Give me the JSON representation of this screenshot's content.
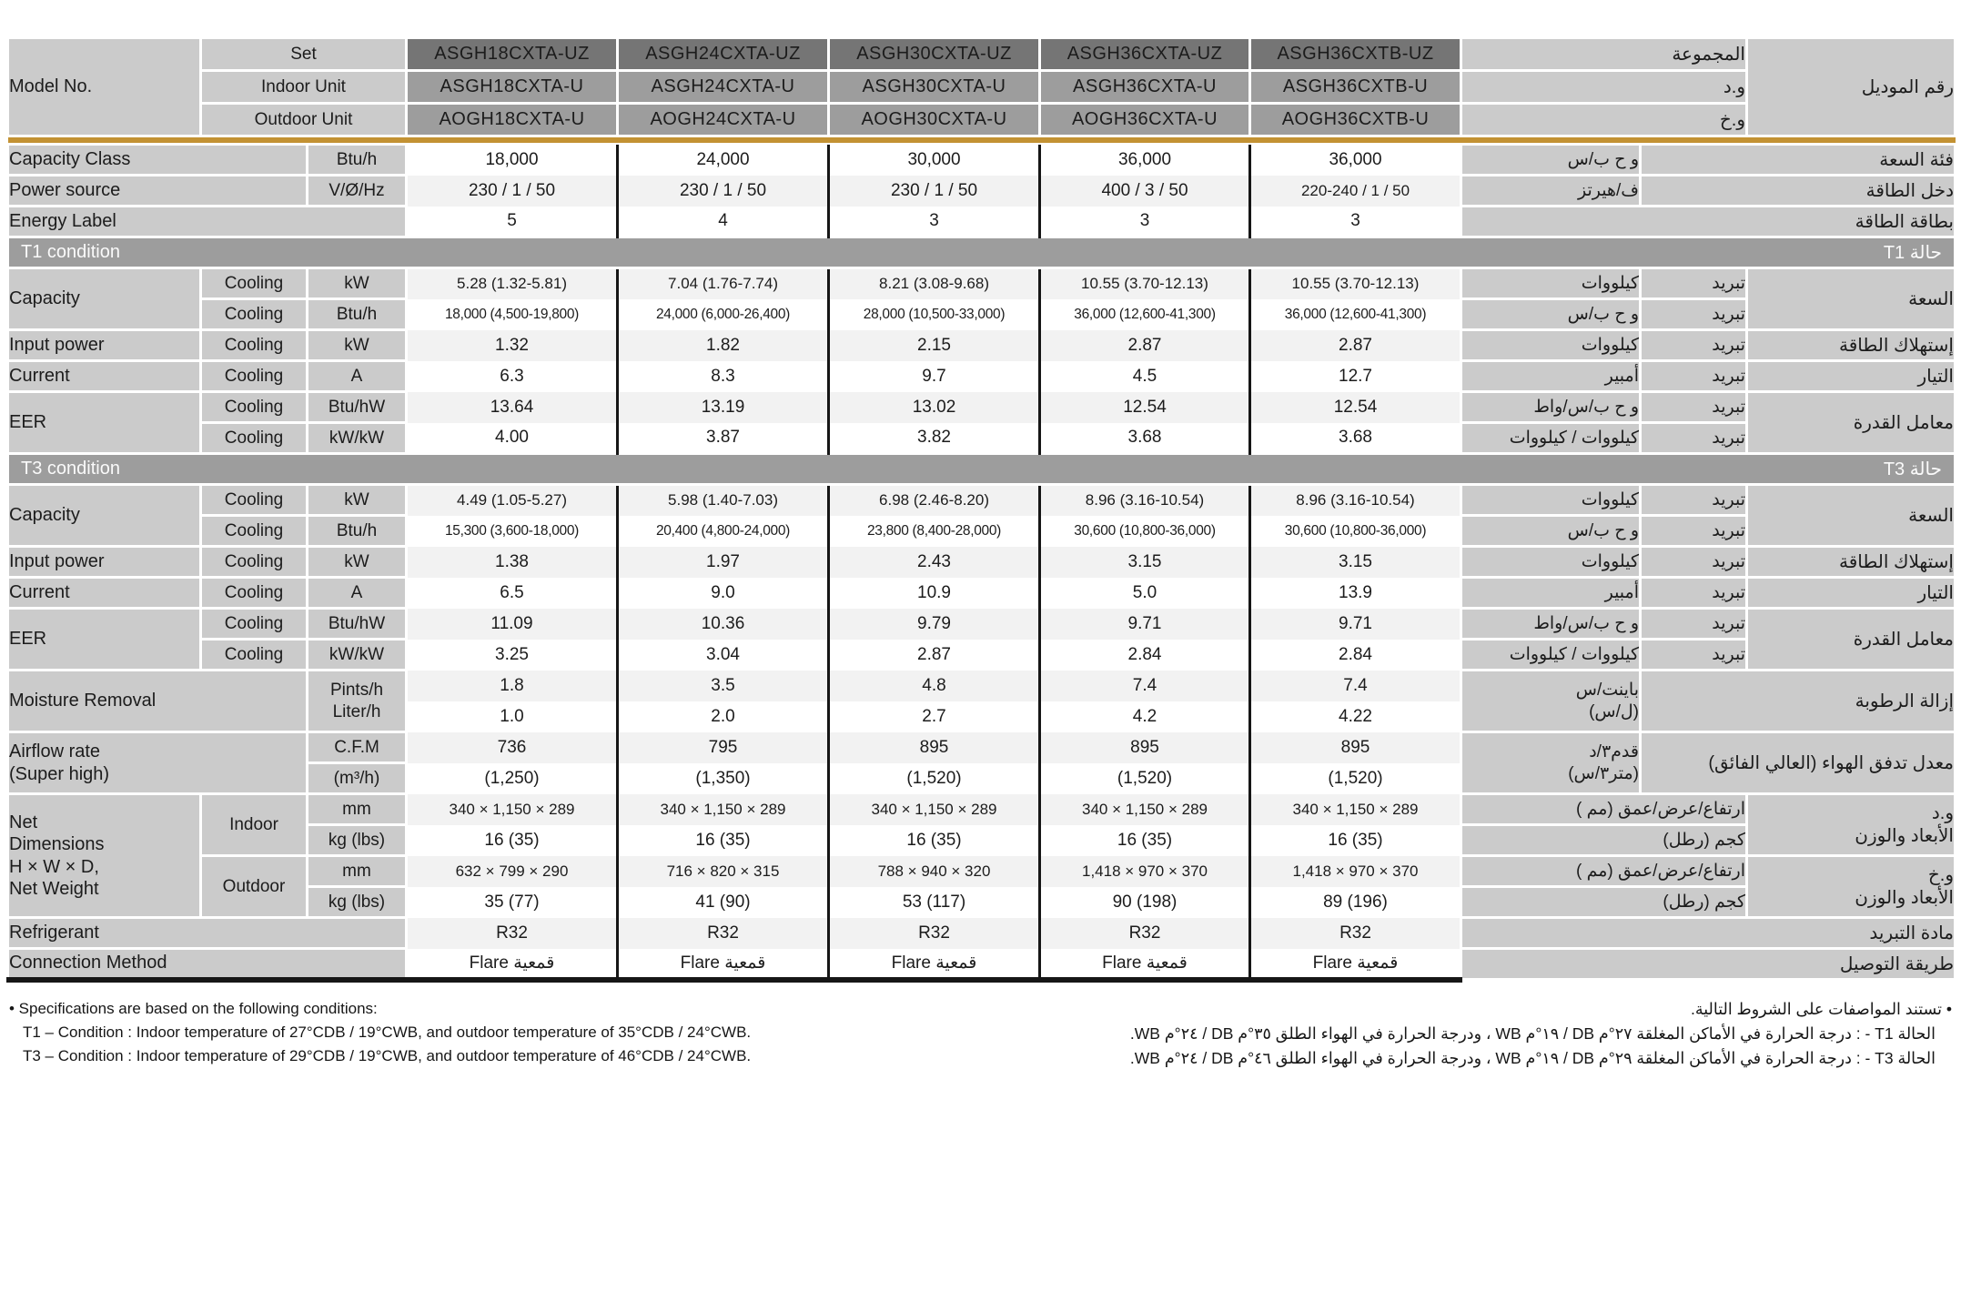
{
  "colors": {
    "gold_divider": "#C39233",
    "model_set_header": "#757575",
    "model_unit_header": "#9D9D9D",
    "label_cell_gray": "#CBCBCB",
    "row_alt_gray": "#F2F2F2",
    "column_rule_black": "#161616"
  },
  "models": {
    "label": "Model No.",
    "ar_label": "رقم الموديل",
    "rows": [
      {
        "name": "Set",
        "ar": "المجموعة",
        "values": [
          "ASGH18CXTA-UZ",
          "ASGH24CXTA-UZ",
          "ASGH30CXTA-UZ",
          "ASGH36CXTA-UZ",
          "ASGH36CXTB-UZ"
        ]
      },
      {
        "name": "Indoor Unit",
        "ar": "و.د",
        "values": [
          "ASGH18CXTA-U",
          "ASGH24CXTA-U",
          "ASGH30CXTA-U",
          "ASGH36CXTA-U",
          "ASGH36CXTB-U"
        ]
      },
      {
        "name": "Outdoor Unit",
        "ar": "و.خ",
        "values": [
          "AOGH18CXTA-U",
          "AOGH24CXTA-U",
          "AOGH30CXTA-U",
          "AOGH36CXTA-U",
          "AOGH36CXTB-U"
        ]
      }
    ]
  },
  "blocks": [
    {
      "type": "simple",
      "en": "Capacity Class",
      "unit": "Btu/h",
      "values": [
        "18,000",
        "24,000",
        "30,000",
        "36,000",
        "36,000"
      ],
      "ar_unit": "و ح ب/س",
      "ar": "فئة السعة"
    },
    {
      "type": "simple",
      "en": "Power source",
      "unit": "V/Ø/Hz",
      "values": [
        "230 / 1 / 50",
        "230 / 1 / 50",
        "230 / 1 / 50",
        "400 / 3 / 50",
        "220-240 / 1 / 50"
      ],
      "ar_unit": "ف/هيرتز",
      "ar": "دخل الطاقة"
    },
    {
      "type": "full",
      "en": "Energy Label",
      "values": [
        "5",
        "4",
        "3",
        "3",
        "3"
      ],
      "ar": "بطاقة الطاقة"
    },
    {
      "type": "banner",
      "en": "T1 condition",
      "ar": "حالة T1"
    },
    {
      "type": "group",
      "en": "Capacity",
      "ar": "السعة",
      "rows": [
        {
          "sub": "Cooling",
          "unit": "kW",
          "values": [
            "5.28 (1.32-5.81)",
            "7.04 (1.76-7.74)",
            "8.21 (3.08-9.68)",
            "10.55 (3.70-12.13)",
            "10.55 (3.70-12.13)"
          ],
          "ar_unit": "كيلووات",
          "ar_sub": "تبريد"
        },
        {
          "sub": "Cooling",
          "unit": "Btu/h",
          "values": [
            "18,000 (4,500-19,800)",
            "24,000 (6,000-26,400)",
            "28,000 (10,500-33,000)",
            "36,000 (12,600-41,300)",
            "36,000 (12,600-41,300)"
          ],
          "ar_unit": "و ح ب/س",
          "ar_sub": "تبريد"
        }
      ]
    },
    {
      "type": "group",
      "en": "Input power",
      "ar": "إستهلاك الطاقة",
      "rows": [
        {
          "sub": "Cooling",
          "unit": "kW",
          "values": [
            "1.32",
            "1.82",
            "2.15",
            "2.87",
            "2.87"
          ],
          "ar_unit": "كيلووات",
          "ar_sub": "تبريد"
        }
      ]
    },
    {
      "type": "group",
      "en": "Current",
      "ar": "التيار",
      "rows": [
        {
          "sub": "Cooling",
          "unit": "A",
          "values": [
            "6.3",
            "8.3",
            "9.7",
            "4.5",
            "12.7"
          ],
          "ar_unit": "أمبير",
          "ar_sub": "تبريد"
        }
      ]
    },
    {
      "type": "group",
      "en": "EER",
      "ar": "معامل القدرة",
      "rows": [
        {
          "sub": "Cooling",
          "unit": "Btu/hW",
          "values": [
            "13.64",
            "13.19",
            "13.02",
            "12.54",
            "12.54"
          ],
          "ar_unit": "و ح ب/س/واط",
          "ar_sub": "تبريد"
        },
        {
          "sub": "Cooling",
          "unit": "kW/kW",
          "values": [
            "4.00",
            "3.87",
            "3.82",
            "3.68",
            "3.68"
          ],
          "ar_unit": "كيلووات / كيلووات",
          "ar_sub": "تبريد"
        }
      ]
    },
    {
      "type": "banner",
      "en": "T3 condition",
      "ar": "حالة T3"
    },
    {
      "type": "group",
      "en": "Capacity",
      "ar": "السعة",
      "rows": [
        {
          "sub": "Cooling",
          "unit": "kW",
          "values": [
            "4.49 (1.05-5.27)",
            "5.98 (1.40-7.03)",
            "6.98 (2.46-8.20)",
            "8.96 (3.16-10.54)",
            "8.96 (3.16-10.54)"
          ],
          "ar_unit": "كيلووات",
          "ar_sub": "تبريد"
        },
        {
          "sub": "Cooling",
          "unit": "Btu/h",
          "values": [
            "15,300 (3,600-18,000)",
            "20,400 (4,800-24,000)",
            "23,800 (8,400-28,000)",
            "30,600 (10,800-36,000)",
            "30,600 (10,800-36,000)"
          ],
          "ar_unit": "و ح ب/س",
          "ar_sub": "تبريد"
        }
      ]
    },
    {
      "type": "group",
      "en": "Input power",
      "ar": "إستهلاك الطاقة",
      "rows": [
        {
          "sub": "Cooling",
          "unit": "kW",
          "values": [
            "1.38",
            "1.97",
            "2.43",
            "3.15",
            "3.15"
          ],
          "ar_unit": "كيلووات",
          "ar_sub": "تبريد"
        }
      ]
    },
    {
      "type": "group",
      "en": "Current",
      "ar": "التيار",
      "rows": [
        {
          "sub": "Cooling",
          "unit": "A",
          "values": [
            "6.5",
            "9.0",
            "10.9",
            "5.0",
            "13.9"
          ],
          "ar_unit": "أمبير",
          "ar_sub": "تبريد"
        }
      ]
    },
    {
      "type": "group",
      "en": "EER",
      "ar": "معامل القدرة",
      "rows": [
        {
          "sub": "Cooling",
          "unit": "Btu/hW",
          "values": [
            "11.09",
            "10.36",
            "9.79",
            "9.71",
            "9.71"
          ],
          "ar_unit": "و ح ب/س/واط",
          "ar_sub": "تبريد"
        },
        {
          "sub": "Cooling",
          "unit": "kW/kW",
          "values": [
            "3.25",
            "3.04",
            "2.87",
            "2.84",
            "2.84"
          ],
          "ar_unit": "كيلووات / كيلووات",
          "ar_sub": "تبريد"
        }
      ]
    },
    {
      "type": "stack",
      "en": "Moisture Removal",
      "unit_merged": true,
      "unit": "Pints/h\nLiter/h",
      "rows": [
        [
          "1.8",
          "3.5",
          "4.8",
          "7.4",
          "7.4"
        ],
        [
          "1.0",
          "2.0",
          "2.7",
          "4.2",
          "4.22"
        ]
      ],
      "ar_unit": "باينت/س\n(ل/س)",
      "ar": "إزالة الرطوبة"
    },
    {
      "type": "stack",
      "en": "Airflow rate\n(Super high)",
      "unit_merged": false,
      "units": [
        "C.F.M",
        "(m³/h)"
      ],
      "rows": [
        [
          "736",
          "795",
          "895",
          "895",
          "895"
        ],
        [
          "(1,250)",
          "(1,350)",
          "(1,520)",
          "(1,520)",
          "(1,520)"
        ]
      ],
      "ar_unit": "قدم٣/د\n(متر٣/س)",
      "ar": "معدل تدفق الهواء (العالي الفائق)"
    },
    {
      "type": "dims",
      "en": "Net\nDimensions\nH × W × D,\nNet Weight",
      "groups": [
        {
          "sub": "Indoor",
          "ar": "و.د\nالأبعاد والوزن",
          "rows": [
            {
              "unit": "mm",
              "values": [
                "340 × 1,150 × 289",
                "340 × 1,150 × 289",
                "340 × 1,150 × 289",
                "340 × 1,150 × 289",
                "340 × 1,150 × 289"
              ],
              "ar_unit": "ارتفاع/عرض/عمق (مم )"
            },
            {
              "unit": "kg (lbs)",
              "values": [
                "16 (35)",
                "16 (35)",
                "16 (35)",
                "16 (35)",
                "16 (35)"
              ],
              "ar_unit": "كجم (رطل)"
            }
          ]
        },
        {
          "sub": "Outdoor",
          "ar": "و.خ\nالأبعاد والوزن",
          "rows": [
            {
              "unit": "mm",
              "values": [
                "632 × 799 × 290",
                "716 × 820 × 315",
                "788 × 940 × 320",
                "1,418 × 970 × 370",
                "1,418 × 970 × 370"
              ],
              "ar_unit": "ارتفاع/عرض/عمق (مم )"
            },
            {
              "unit": "kg (lbs)",
              "values": [
                "35 (77)",
                "41 (90)",
                "53 (117)",
                "90 (198)",
                "89 (196)"
              ],
              "ar_unit": "كجم (رطل)"
            }
          ]
        }
      ]
    },
    {
      "type": "full",
      "en": "Refrigerant",
      "values": [
        "R32",
        "R32",
        "R32",
        "R32",
        "R32"
      ],
      "ar": "مادة التبريد"
    },
    {
      "type": "full",
      "en": "Connection Method",
      "values": [
        "Flare قمعية",
        "Flare قمعية",
        "Flare قمعية",
        "Flare قمعية",
        "Flare قمعية"
      ],
      "ar": "طريقة التوصيل"
    }
  ],
  "footnotes": {
    "en": [
      "• Specifications are based on the following conditions:",
      "T1 – Condition : Indoor temperature of 27°CDB / 19°CWB, and outdoor temperature of 35°CDB / 24°CWB.",
      "T3 – Condition : Indoor temperature of 29°CDB / 19°CWB, and outdoor temperature of 46°CDB / 24°CWB."
    ],
    "ar": [
      "• تستند المواصفات على الشروط التالية.",
      "الحالة T1 - : درجة الحرارة في الأماكن المغلقة ٢٧°م DB / ١٩°م WB ، ودرجة الحرارة في الهواء الطلق ٣٥°م DB / ٢٤°م WB.",
      "الحالة T3 - : درجة الحرارة في الأماكن المغلقة ٢٩°م DB / ١٩°م WB ، ودرجة الحرارة في الهواء الطلق ٤٦°م DB / ٢٤°م WB."
    ]
  }
}
